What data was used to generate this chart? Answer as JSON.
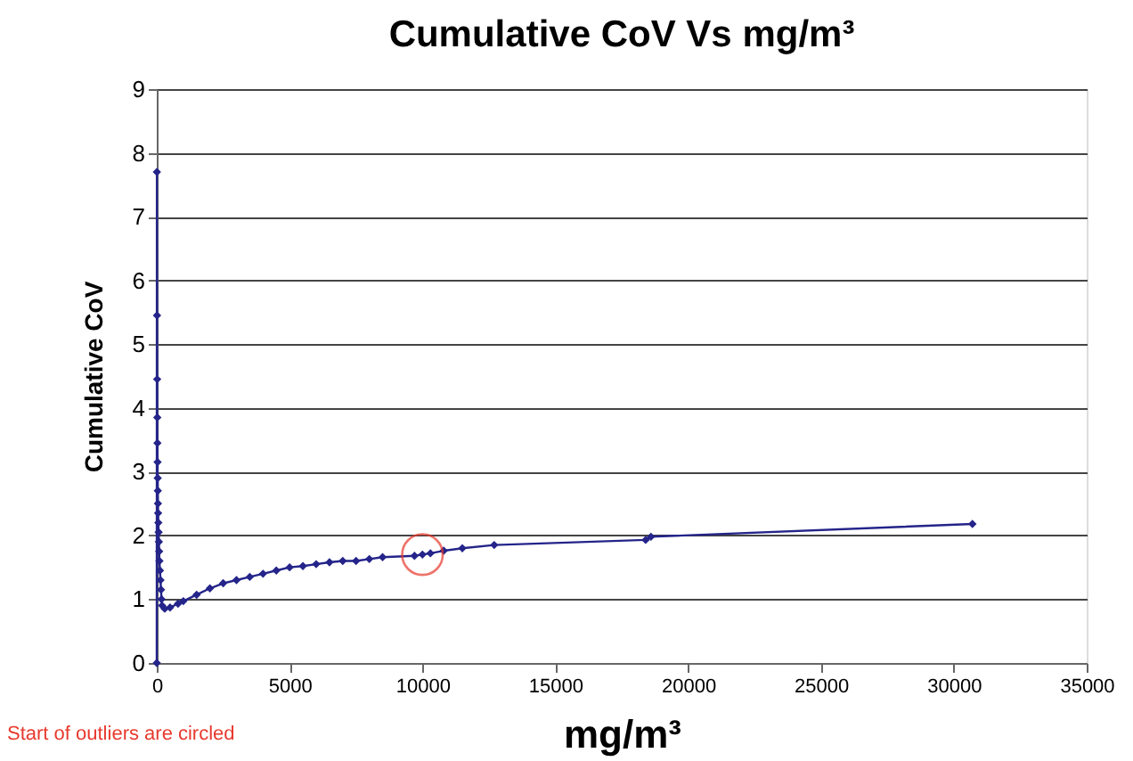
{
  "chart_data": {
    "type": "line",
    "title": "Cumulative CoV Vs mg/m³",
    "xlabel": "mg/m³",
    "ylabel": "Cumulative CoV",
    "x": [
      0,
      5,
      10,
      15,
      20,
      25,
      30,
      35,
      40,
      45,
      50,
      60,
      70,
      80,
      90,
      100,
      120,
      140,
      160,
      180,
      200,
      300,
      500,
      800,
      1000,
      1500,
      2000,
      2500,
      3000,
      3500,
      4000,
      4500,
      5000,
      5500,
      6000,
      6500,
      7000,
      7500,
      8000,
      8500,
      9700,
      10000,
      10300,
      10800,
      11500,
      12700,
      18400,
      18600,
      30700
    ],
    "series": [
      {
        "color": "#24248a",
        "values": [
          0,
          7.7,
          5.45,
          4.45,
          3.85,
          3.45,
          3.15,
          2.9,
          2.7,
          2.5,
          2.35,
          2.2,
          2.05,
          1.9,
          1.75,
          1.6,
          1.45,
          1.3,
          1.15,
          1.0,
          0.9,
          0.85,
          0.87,
          0.93,
          0.97,
          1.07,
          1.17,
          1.25,
          1.3,
          1.35,
          1.4,
          1.45,
          1.5,
          1.52,
          1.55,
          1.58,
          1.6,
          1.6,
          1.63,
          1.66,
          1.68,
          1.7,
          1.72,
          1.76,
          1.8,
          1.85,
          1.93,
          1.98,
          2.18
        ]
      }
    ],
    "xlim": [
      0,
      35000
    ],
    "xticks": [
      0,
      5000,
      10000,
      15000,
      20000,
      25000,
      30000,
      35000
    ],
    "ylim": [
      0,
      9
    ],
    "yticks": [
      0,
      1,
      2,
      3,
      4,
      5,
      6,
      7,
      8,
      9
    ],
    "grid": "y",
    "marker": "diamond",
    "line_style": "solid",
    "annotations": [
      "Start of outliers are circled"
    ]
  }
}
